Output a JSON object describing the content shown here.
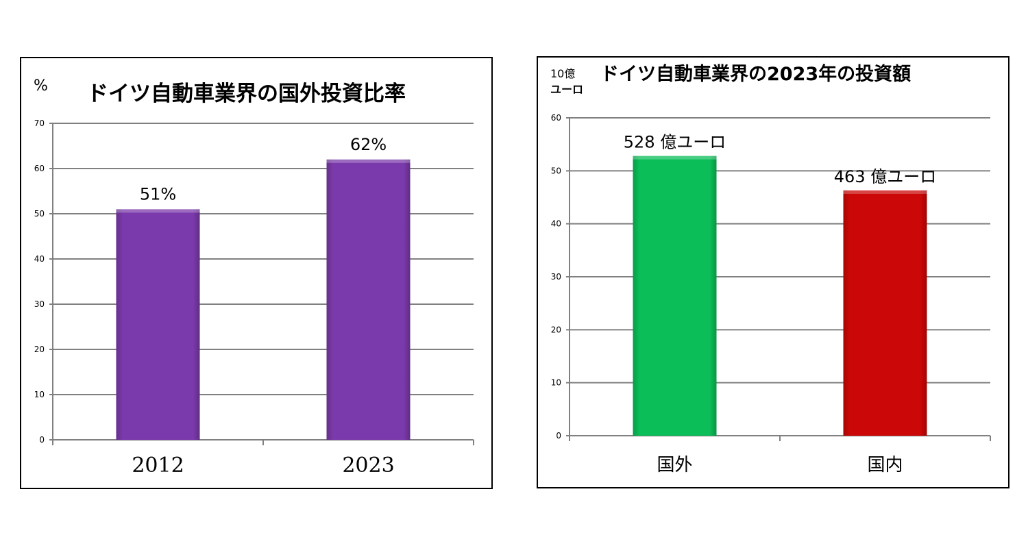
{
  "chart_data": [
    {
      "type": "bar",
      "title": "ドイツ自動車業界の国外投資比率",
      "ylabel": "%",
      "categories": [
        "2012",
        "2023"
      ],
      "values": [
        51,
        62
      ],
      "data_labels": [
        "51%",
        "62%"
      ],
      "ylim": [
        0,
        70
      ],
      "yticks": [
        0,
        10,
        20,
        30,
        40,
        50,
        60,
        70
      ],
      "grid": true,
      "bar_color": "#7B3AAB"
    },
    {
      "type": "bar",
      "title": "ドイツ自動車業界の2023年の投資額",
      "ylabel_line1": "10億",
      "ylabel_line2": "ユーロ",
      "categories": [
        "国外",
        "国内"
      ],
      "values": [
        52.8,
        46.3
      ],
      "data_labels": [
        "528 億ユーロ",
        "463 億ユーロ"
      ],
      "ylim": [
        0,
        60
      ],
      "yticks": [
        0,
        10,
        20,
        30,
        40,
        50,
        60
      ],
      "grid": true,
      "bar_colors": [
        "#0BBE58",
        "#CC0707"
      ]
    }
  ]
}
